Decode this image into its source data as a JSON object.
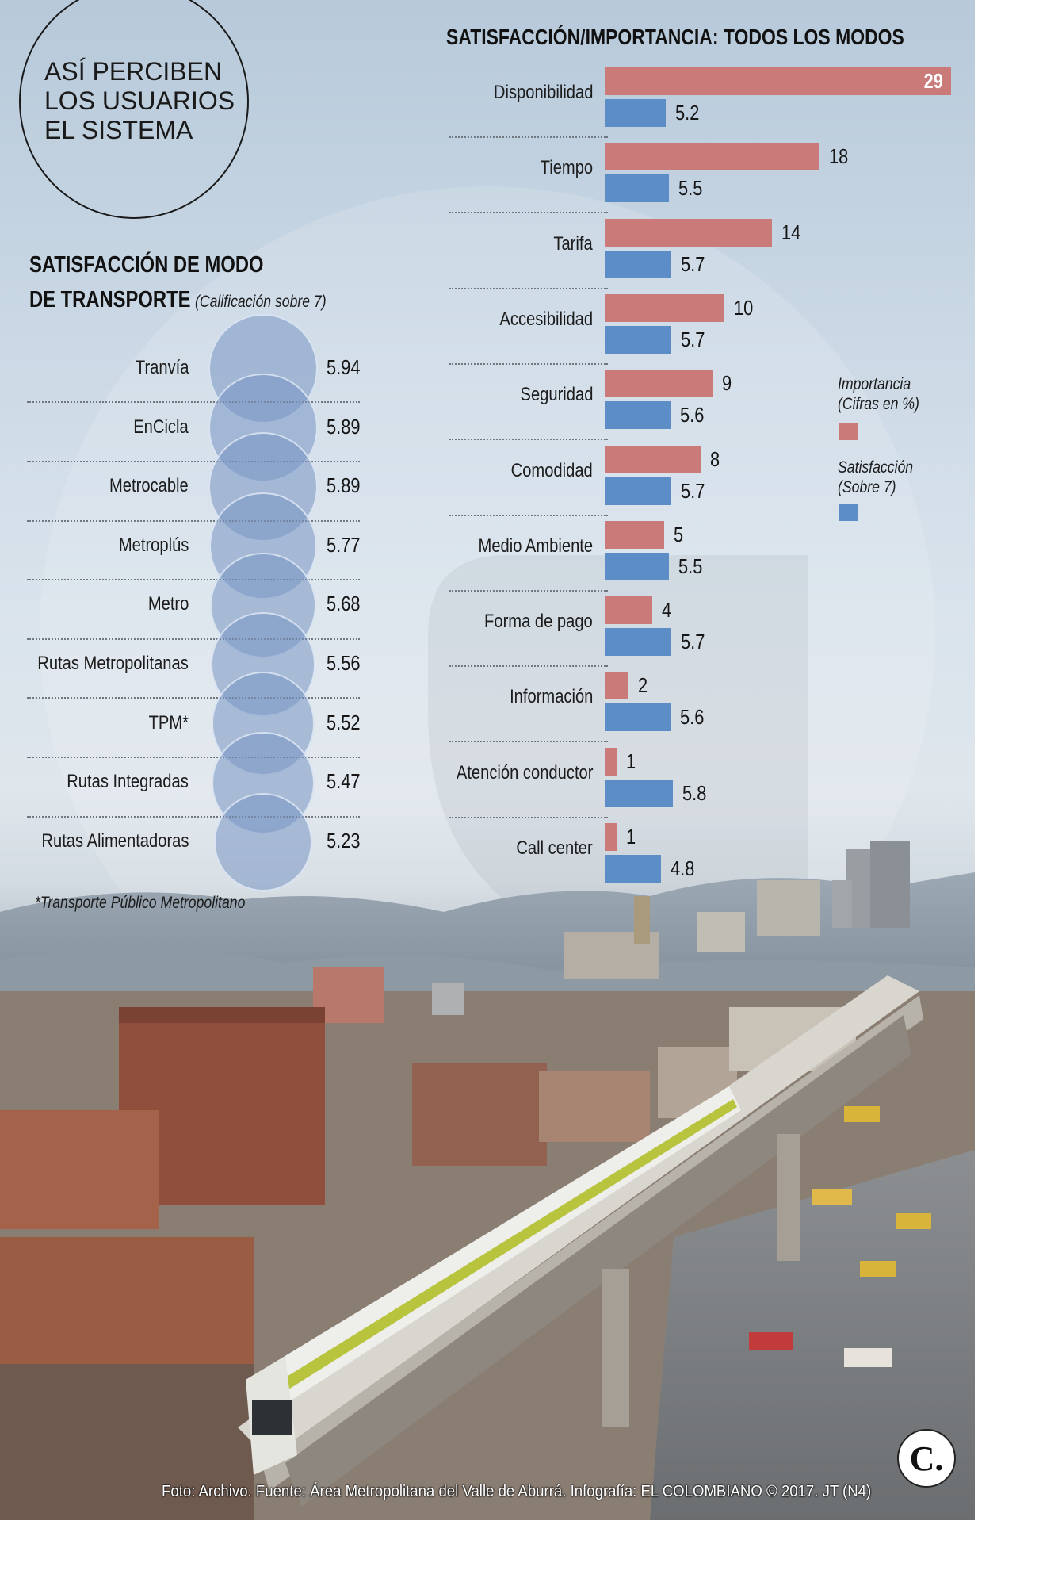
{
  "poster_title": [
    "ASÍ PERCIBEN",
    "LOS USUARIOS",
    "EL SISTEMA"
  ],
  "left_chart_title": [
    "SATISFACCIÓN DE MODO",
    "DE TRANSPORTE"
  ],
  "left_chart_subtitle": "(Calificación sobre 7)",
  "right_chart_title": "SATISFACCIÓN/IMPORTANCIA: TODOS LOS MODOS",
  "footnote": "*Transporte Público Metropolitano",
  "footer_credit": "Foto: Archivo. Fuente: Área Metropolitana del Valle de Aburrá. Infografía: EL COLOMBIANO © 2017. JT (N4)",
  "logo_letter": "C.",
  "legend": {
    "importance": [
      "Importancia",
      "(Cifras en %)"
    ],
    "satisfaction": [
      "Satisfacción",
      "(Sobre 7)"
    ]
  },
  "colors": {
    "importance": "#c97a79",
    "satisfaction": "#5c8dc6",
    "bubble": "#7896c3"
  },
  "chart_data": [
    {
      "type": "bubble",
      "title": "SATISFACCIÓN DE MODO DE TRANSPORTE",
      "subtitle": "(Calificación sobre 7)",
      "categories": [
        "Tranvía",
        "EnCicla",
        "Metrocable",
        "Metroplús",
        "Metro",
        "Rutas Metropolitanas",
        "TPM*",
        "Rutas Integradas",
        "Rutas Alimentadoras"
      ],
      "values": [
        5.94,
        5.89,
        5.89,
        5.77,
        5.68,
        5.56,
        5.52,
        5.47,
        5.23
      ],
      "value_labels": [
        "5.94",
        "5.89",
        "5.89",
        "5.77",
        "5.68",
        "5.56",
        "5.52",
        "5.47",
        "5.23"
      ]
    },
    {
      "type": "bar",
      "orientation": "horizontal",
      "title": "SATISFACCIÓN/IMPORTANCIA: TODOS LOS MODOS",
      "categories": [
        "Disponibilidad",
        "Tiempo",
        "Tarifa",
        "Accesibilidad",
        "Seguridad",
        "Comodidad",
        "Medio Ambiente",
        "Forma de pago",
        "Información",
        "Atención conductor",
        "Call center"
      ],
      "series": [
        {
          "name": "Importancia (Cifras en %)",
          "values": [
            29,
            18,
            14,
            10,
            9,
            8,
            5,
            4,
            2,
            1,
            1
          ],
          "value_labels": [
            "29",
            "18",
            "14",
            "10",
            "9",
            "8",
            "5",
            "4",
            "2",
            "1",
            "1"
          ]
        },
        {
          "name": "Satisfacción (Sobre 7)",
          "values": [
            5.2,
            5.5,
            5.7,
            5.7,
            5.6,
            5.7,
            5.5,
            5.7,
            5.6,
            5.8,
            4.8
          ],
          "value_labels": [
            "5.2",
            "5.5",
            "5.7",
            "5.7",
            "5.6",
            "5.7",
            "5.5",
            "5.7",
            "5.6",
            "5.8",
            "4.8"
          ]
        }
      ]
    }
  ]
}
